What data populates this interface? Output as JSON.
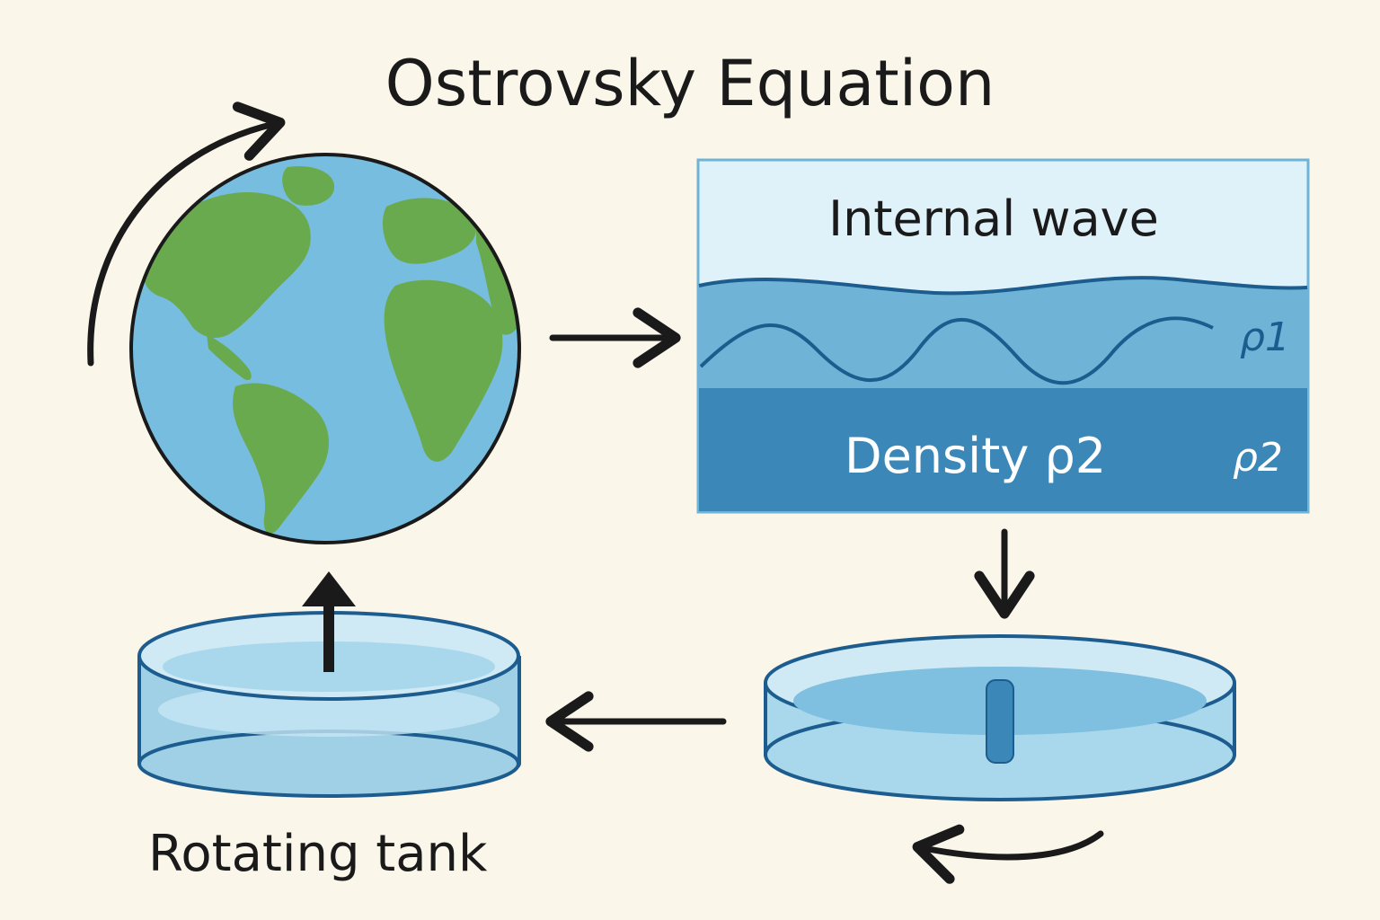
{
  "title": "Ostrovsky Equation",
  "internal_wave_panel": {
    "heading": "Internal wave",
    "upper_layer_label": "ρ1",
    "lower_layer_text": "Density ρ2",
    "lower_layer_label": "ρ2"
  },
  "tank_label": "Rotating tank",
  "colors": {
    "background": "#fbf6ea",
    "ocean": "#77bde0",
    "land": "#6aaa4f",
    "panel_top": "#dff1f9",
    "panel_mid": "#6fb4d6",
    "panel_bottom": "#3a87b8",
    "wave_line": "#1d5c8e",
    "arrow": "#1a1a1a"
  },
  "icons": {
    "earth": "earth-globe-icon",
    "rotation": "curved-rotation-arrow-icon",
    "tank": "water-tank-icon"
  }
}
